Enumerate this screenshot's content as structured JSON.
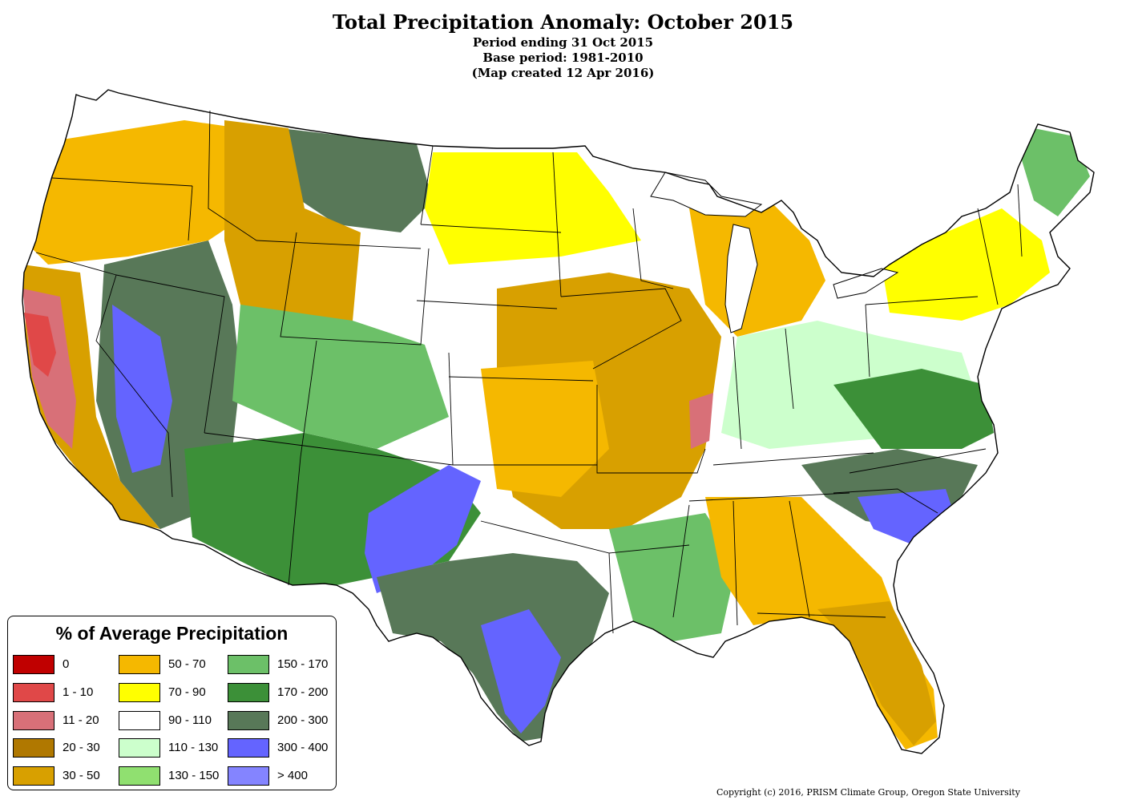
{
  "header": {
    "title": "Total Precipitation Anomaly: October 2015",
    "period": "Period ending 31 Oct 2015",
    "base_period": "Base period: 1981-2010",
    "created": "(Map created 12 Apr 2016)"
  },
  "legend": {
    "title": "% of Average Precipitation",
    "items": [
      {
        "label": "0",
        "color": "#c00000"
      },
      {
        "label": "1 - 10",
        "color": "#e04848"
      },
      {
        "label": "11 - 20",
        "color": "#d87078"
      },
      {
        "label": "20 - 30",
        "color": "#b07800"
      },
      {
        "label": "30 - 50",
        "color": "#d8a000"
      },
      {
        "label": "50 - 70",
        "color": "#f5b800"
      },
      {
        "label": "70 - 90",
        "color": "#ffff00"
      },
      {
        "label": "90 - 110",
        "color": "#ffffff"
      },
      {
        "label": "110 - 130",
        "color": "#ccffcc"
      },
      {
        "label": "130 - 150",
        "color": "#90e070"
      },
      {
        "label": "150 - 170",
        "color": "#6cc068"
      },
      {
        "label": "170 - 200",
        "color": "#3c9038"
      },
      {
        "label": "200 - 300",
        "color": "#587858"
      },
      {
        "label": "300 - 400",
        "color": "#6464ff"
      },
      {
        "label": "> 400",
        "color": "#8484ff"
      }
    ]
  },
  "copyright": "Copyright (c) 2016, PRISM Climate Group, Oregon State University"
}
